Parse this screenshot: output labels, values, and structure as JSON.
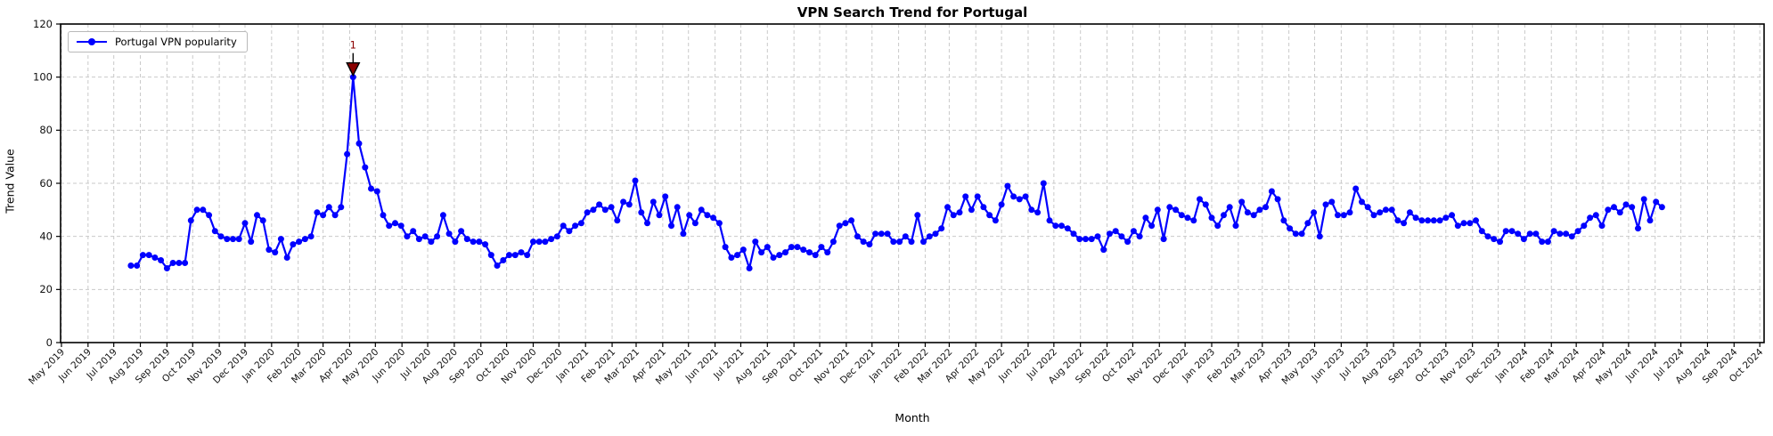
{
  "chart": {
    "title": "VPN Search Trend for Portugal",
    "xlabel": "Month",
    "ylabel": "Trend Value",
    "legend_label": "Portugal VPN popularity"
  },
  "chart_data": {
    "type": "line",
    "title": "VPN Search Trend for Portugal",
    "xlabel": "Month",
    "ylabel": "Trend Value",
    "series_name": "Portugal VPN popularity",
    "frequency": "weekly",
    "start_date": "2019-07-21",
    "ylim": [
      0,
      120
    ],
    "y_ticks": [
      0,
      20,
      40,
      60,
      80,
      100,
      120
    ],
    "grid": true,
    "legend_position": "upper left",
    "line_color": "#0000ff",
    "grid_color": "#c9c9c9",
    "annotation": {
      "label": "1",
      "at_value": 100,
      "color": "#8b0000"
    },
    "x_tick_labels": [
      "May 2019",
      "Jun 2019",
      "Jul 2019",
      "Aug 2019",
      "Sep 2019",
      "Oct 2019",
      "Nov 2019",
      "Dec 2019",
      "Jan 2020",
      "Feb 2020",
      "Mar 2020",
      "Apr 2020",
      "May 2020",
      "Jun 2020",
      "Jul 2020",
      "Aug 2020",
      "Sep 2020",
      "Oct 2020",
      "Nov 2020",
      "Dec 2020",
      "Jan 2021",
      "Feb 2021",
      "Mar 2021",
      "Apr 2021",
      "May 2021",
      "Jun 2021",
      "Jul 2021",
      "Aug 2021",
      "Sep 2021",
      "Oct 2021",
      "Nov 2021",
      "Dec 2021",
      "Jan 2022",
      "Feb 2022",
      "Mar 2022",
      "Apr 2022",
      "May 2022",
      "Jun 2022",
      "Jul 2022",
      "Aug 2022",
      "Sep 2022",
      "Oct 2022",
      "Nov 2022",
      "Dec 2022",
      "Jan 2023",
      "Feb 2023",
      "Mar 2023",
      "Apr 2023",
      "May 2023",
      "Jun 2023",
      "Jul 2023",
      "Aug 2023",
      "Sep 2023",
      "Oct 2023",
      "Nov 2023",
      "Dec 2023",
      "Jan 2024",
      "Feb 2024",
      "Mar 2024",
      "Apr 2024",
      "May 2024",
      "Jun 2024",
      "Jul 2024",
      "Aug 2024",
      "Sep 2024",
      "Oct 2024"
    ],
    "values": [
      29,
      29,
      33,
      33,
      32,
      31,
      28,
      30,
      30,
      30,
      46,
      50,
      50,
      48,
      42,
      40,
      39,
      39,
      39,
      45,
      38,
      48,
      46,
      35,
      34,
      39,
      32,
      37,
      38,
      39,
      40,
      49,
      48,
      51,
      48,
      51,
      71,
      100,
      75,
      66,
      58,
      57,
      48,
      44,
      45,
      44,
      40,
      42,
      39,
      40,
      38,
      40,
      48,
      41,
      38,
      42,
      39,
      38,
      38,
      37,
      33,
      29,
      31,
      33,
      33,
      34,
      33,
      38,
      38,
      38,
      39,
      40,
      44,
      42,
      44,
      45,
      49,
      50,
      52,
      50,
      51,
      46,
      53,
      52,
      61,
      49,
      45,
      53,
      48,
      55,
      44,
      51,
      41,
      48,
      45,
      50,
      48,
      47,
      45,
      36,
      32,
      33,
      35,
      28,
      38,
      34,
      36,
      32,
      33,
      34,
      36,
      36,
      35,
      34,
      33,
      36,
      34,
      38,
      44,
      45,
      46,
      40,
      38,
      37,
      41,
      41,
      41,
      38,
      38,
      40,
      38,
      48,
      38,
      40,
      41,
      43,
      51,
      48,
      49,
      55,
      50,
      55,
      51,
      48,
      46,
      52,
      59,
      55,
      54,
      55,
      50,
      49,
      60,
      46,
      44,
      44,
      43,
      41,
      39,
      39,
      39,
      40,
      35,
      41,
      42,
      40,
      38,
      42,
      40,
      47,
      44,
      50,
      39,
      51,
      50,
      48,
      47,
      46,
      54,
      52,
      47,
      44,
      48,
      51,
      44,
      53,
      49,
      48,
      50,
      51,
      57,
      54,
      46,
      43,
      41,
      41,
      45,
      49,
      40,
      52,
      53,
      48,
      48,
      49,
      58,
      53,
      51,
      48,
      49,
      50,
      50,
      46,
      45,
      49,
      47,
      46,
      46,
      46,
      46,
      47,
      48,
      44,
      45,
      45,
      46,
      42,
      40,
      39,
      38,
      42,
      42,
      41,
      39,
      41,
      41,
      38,
      38,
      42,
      41,
      41,
      40,
      42,
      44,
      47,
      48,
      44,
      50,
      51,
      49,
      52,
      51,
      43,
      54,
      46,
      53,
      51
    ]
  }
}
